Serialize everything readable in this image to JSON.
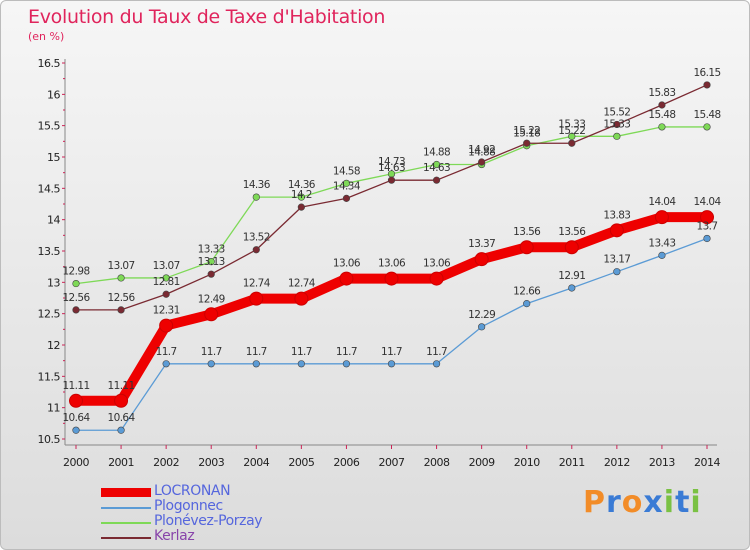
{
  "chart_data": {
    "type": "line",
    "title": "Evolution du Taux de Taxe d'Habitation",
    "subtitle": "(en %)",
    "x": [
      "2000",
      "2001",
      "2002",
      "2003",
      "2004",
      "2005",
      "2006",
      "2007",
      "2008",
      "2009",
      "2010",
      "2011",
      "2012",
      "2013",
      "2014"
    ],
    "ylim": [
      10.5,
      16.5
    ],
    "yticks": [
      "10.5",
      "11",
      "11.5",
      "12",
      "12.5",
      "13",
      "13.5",
      "14",
      "14.5",
      "15",
      "15.5",
      "16",
      "16.5"
    ],
    "grid": false,
    "legend_position": "bottom-left",
    "series": [
      {
        "name": "LOCRONAN",
        "color": "#ee0000",
        "values": [
          11.11,
          11.11,
          12.31,
          12.49,
          12.74,
          12.74,
          13.06,
          13.06,
          13.06,
          13.37,
          13.56,
          13.56,
          13.83,
          14.04,
          14.04
        ],
        "labels": [
          "11.11",
          "11.11",
          "12.31",
          "12.49",
          "12.74",
          "12.74",
          "13.06",
          "13.06",
          "13.06",
          "13.37",
          "13.56",
          "13.56",
          "13.83",
          "14.04",
          "14.04"
        ]
      },
      {
        "name": "Plogonnec",
        "color": "#5b9bd5",
        "values": [
          10.64,
          10.64,
          11.7,
          11.7,
          11.7,
          11.7,
          11.7,
          11.7,
          11.7,
          12.29,
          12.66,
          12.91,
          13.17,
          13.43,
          13.7
        ],
        "labels": [
          "10.64",
          "10.64",
          "11.7",
          "11.7",
          "11.7",
          "11.7",
          "11.7",
          "11.7",
          "11.7",
          "12.29",
          "12.66",
          "12.91",
          "13.17",
          "13.43",
          "13.7"
        ]
      },
      {
        "name": "Plonévez-Porzay",
        "color": "#7ed957",
        "values": [
          12.98,
          13.07,
          13.07,
          13.33,
          14.36,
          14.36,
          14.58,
          14.73,
          14.88,
          14.88,
          15.18,
          15.33,
          15.33,
          15.48,
          15.48
        ],
        "labels": [
          "12.98",
          "13.07",
          "13.07",
          "13.33",
          "14.36",
          "14.36",
          "14.58",
          "14.73",
          "14.88",
          "14.88",
          "15.18",
          "15.33",
          "15.33",
          "15.48",
          "15.48"
        ]
      },
      {
        "name": "Kerlaz",
        "color": "#7a2a32",
        "values": [
          12.56,
          12.56,
          12.81,
          13.13,
          13.52,
          14.2,
          14.34,
          14.63,
          14.63,
          14.92,
          15.22,
          15.22,
          15.52,
          15.83,
          16.15
        ],
        "labels": [
          "12.56",
          "12.56",
          "12.81",
          "13.13",
          "13.52",
          "14.2",
          "14.34",
          "14.63",
          "14.63",
          "14.92",
          "15.22",
          "15.22",
          "15.52",
          "15.83",
          "16.15"
        ]
      }
    ]
  },
  "brand": {
    "text": "Proxiti",
    "letters": [
      "P",
      "r",
      "o",
      "x",
      "i",
      "t",
      "i"
    ],
    "colors": [
      "#f28c28",
      "#3a7bd5",
      "#f28c28",
      "#3a7bd5",
      "#7ac143",
      "#3a7bd5",
      "#7ac143"
    ]
  }
}
